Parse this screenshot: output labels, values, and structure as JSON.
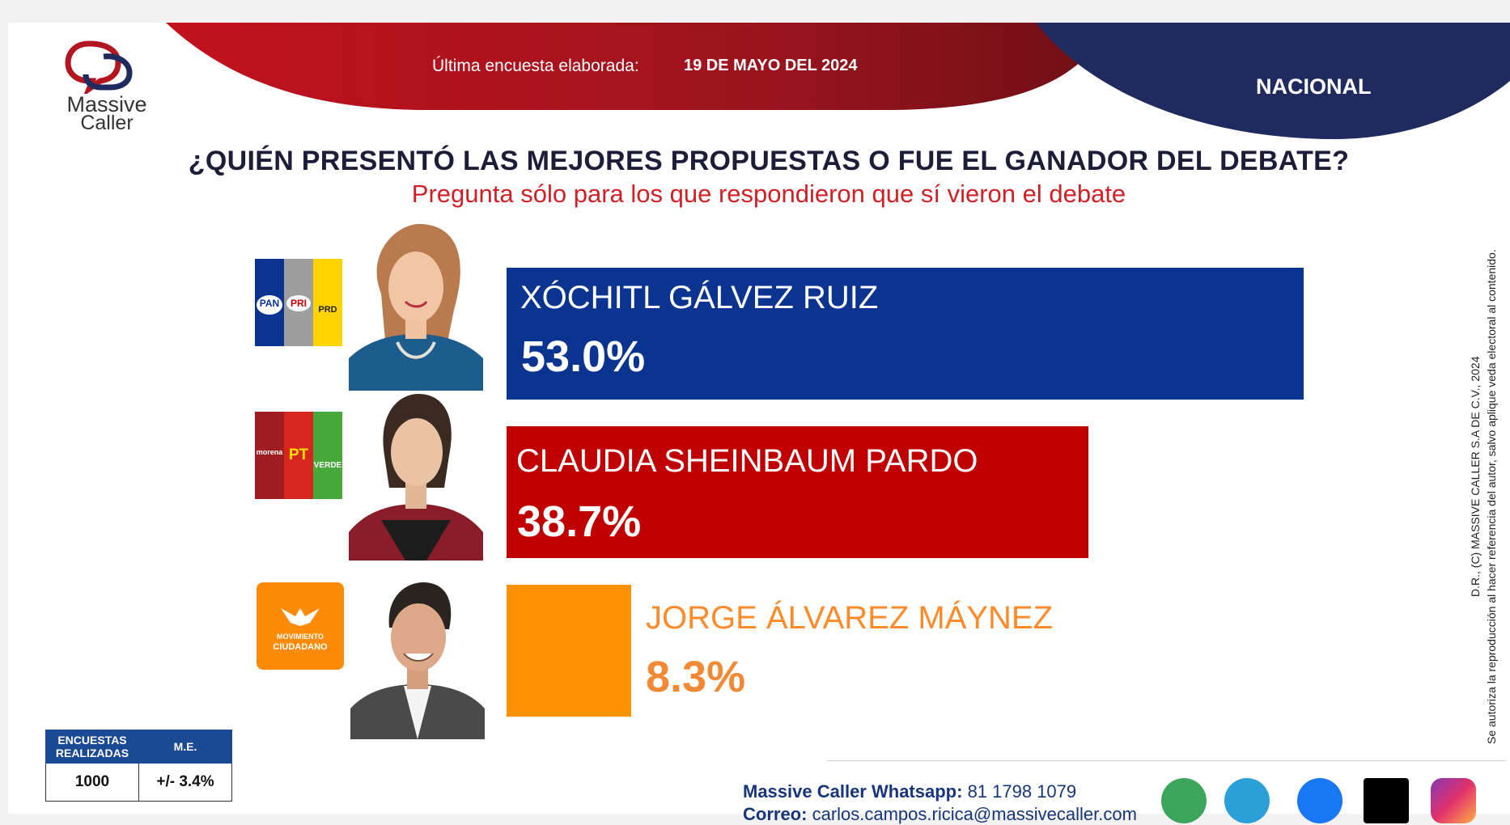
{
  "header": {
    "brand_line1": "Massive",
    "brand_line2": "Caller",
    "survey_label": "Última encuesta elaborada:",
    "survey_date": "19 DE MAYO DEL 2024",
    "region": "NACIONAL"
  },
  "question": "¿QUIÉN PRESENTÓ LAS MEJORES PROPUESTAS O FUE EL GANADOR DEL DEBATE?",
  "subtitle": "Pregunta sólo para los que respondieron que sí vieron el debate",
  "parties": {
    "pan": "PAN",
    "pri": "PRI",
    "prd": "PRD",
    "morena": "morena",
    "pt": "PT",
    "verde": "VERDE",
    "mc_line1": "MOVIMIENTO",
    "mc_line2": "CIUDADANO"
  },
  "chart_data": {
    "type": "bar",
    "orientation": "horizontal",
    "categories": [
      "XÓCHITL GÁLVEZ RUIZ",
      "CLAUDIA SHEINBAUM PARDO",
      "JORGE ÁLVAREZ MÁYNEZ"
    ],
    "values": [
      53.0,
      38.7,
      8.3
    ],
    "labels": [
      "53.0%",
      "38.7%",
      "8.3%"
    ],
    "colors": [
      "#0a3490",
      "#c00000",
      "#ff9105"
    ],
    "title": "¿QUIÉN PRESENTÓ LAS MEJORES PROPUESTAS O FUE EL GANADOR DEL DEBATE?",
    "xlim": [
      0,
      53.0
    ]
  },
  "stats_table": {
    "headers": [
      "ENCUESTAS REALIZADAS",
      "M.E."
    ],
    "values": [
      "1000",
      "+/- 3.4%"
    ]
  },
  "copyright": {
    "line1": "D.R., (C) MASSIVE CALLER S.A DE C.V., 2024",
    "line2": "Se autoriza la reproducción al hacer referencia del autor, salvo aplique veda electoral al contenido."
  },
  "contact": {
    "whatsapp_label": "Massive Caller Whatsapp:",
    "whatsapp_number": "81 1798 1079",
    "email_label": "Correo:",
    "email": "carlos.campos.ricica@massivecaller.com"
  },
  "social_icons": [
    "whatsapp-icon",
    "telegram-icon",
    "facebook-icon",
    "x-icon",
    "instagram-icon"
  ]
}
